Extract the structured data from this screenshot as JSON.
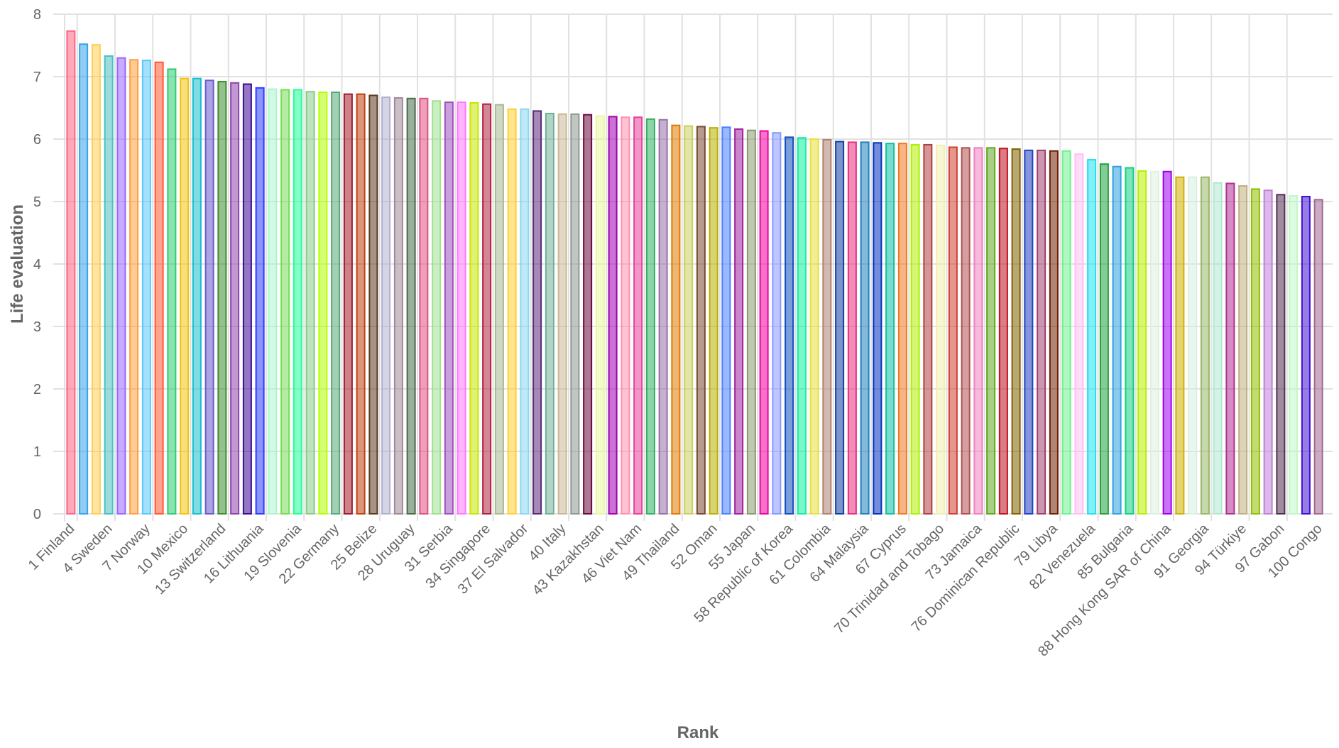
{
  "chart_data": {
    "type": "bar",
    "xlabel": "Rank",
    "ylabel": "Life evaluation",
    "ylim": [
      0,
      8
    ],
    "yticks": [
      "0",
      "1",
      "2",
      "3",
      "4",
      "5",
      "6",
      "7",
      "8"
    ],
    "grid": true,
    "legend": "none",
    "ranks": [
      1,
      2,
      3,
      4,
      5,
      6,
      7,
      8,
      9,
      10,
      11,
      12,
      13,
      14,
      15,
      16,
      17,
      18,
      19,
      20,
      21,
      22,
      23,
      24,
      25,
      26,
      27,
      28,
      29,
      30,
      31,
      32,
      33,
      34,
      35,
      36,
      37,
      38,
      39,
      40,
      41,
      42,
      43,
      44,
      45,
      46,
      47,
      48,
      49,
      50,
      51,
      52,
      53,
      54,
      55,
      56,
      57,
      58,
      59,
      60,
      61,
      62,
      63,
      64,
      65,
      66,
      67,
      68,
      69,
      70,
      71,
      72,
      73,
      74,
      75,
      76,
      77,
      78,
      79,
      80,
      81,
      82,
      83,
      84,
      85,
      86,
      87,
      88,
      89,
      90,
      91,
      92,
      93,
      94,
      95,
      96,
      97,
      98,
      99,
      100
    ],
    "tick_labels": [
      {
        "rank": 1,
        "label": "1 Finland"
      },
      {
        "rank": 4,
        "label": "4 Sweden"
      },
      {
        "rank": 7,
        "label": "7 Norway"
      },
      {
        "rank": 10,
        "label": "10 Mexico"
      },
      {
        "rank": 13,
        "label": "13 Switzerland"
      },
      {
        "rank": 16,
        "label": "16 Lithuania"
      },
      {
        "rank": 19,
        "label": "19 Slovenia"
      },
      {
        "rank": 22,
        "label": "22 Germany"
      },
      {
        "rank": 25,
        "label": "25 Belize"
      },
      {
        "rank": 28,
        "label": "28 Uruguay"
      },
      {
        "rank": 31,
        "label": "31 Serbia"
      },
      {
        "rank": 34,
        "label": "34 Singapore"
      },
      {
        "rank": 37,
        "label": "37 El Salvador"
      },
      {
        "rank": 40,
        "label": "40 Italy"
      },
      {
        "rank": 43,
        "label": "43 Kazakhstan"
      },
      {
        "rank": 46,
        "label": "46 Viet Nam"
      },
      {
        "rank": 49,
        "label": "49 Thailand"
      },
      {
        "rank": 52,
        "label": "52 Oman"
      },
      {
        "rank": 55,
        "label": "55 Japan"
      },
      {
        "rank": 58,
        "label": "58 Republic of Korea"
      },
      {
        "rank": 61,
        "label": "61 Colombia"
      },
      {
        "rank": 64,
        "label": "64 Malaysia"
      },
      {
        "rank": 67,
        "label": "67 Cyprus"
      },
      {
        "rank": 70,
        "label": "70 Trinidad and Tobago"
      },
      {
        "rank": 73,
        "label": "73 Jamaica"
      },
      {
        "rank": 76,
        "label": "76 Dominican Republic"
      },
      {
        "rank": 79,
        "label": "79 Libya"
      },
      {
        "rank": 82,
        "label": "82 Venezuela"
      },
      {
        "rank": 85,
        "label": "85 Bulgaria"
      },
      {
        "rank": 88,
        "label": "88 Hong Kong SAR of China"
      },
      {
        "rank": 91,
        "label": "91 Georgia"
      },
      {
        "rank": 94,
        "label": "94 Türkiye"
      },
      {
        "rank": 97,
        "label": "97 Gabon"
      },
      {
        "rank": 100,
        "label": "100 Congo"
      }
    ],
    "values": [
      7.73,
      7.52,
      7.51,
      7.33,
      7.3,
      7.27,
      7.26,
      7.23,
      7.12,
      6.97,
      6.97,
      6.94,
      6.92,
      6.9,
      6.88,
      6.82,
      6.8,
      6.79,
      6.79,
      6.76,
      6.75,
      6.75,
      6.72,
      6.72,
      6.7,
      6.67,
      6.66,
      6.65,
      6.65,
      6.61,
      6.59,
      6.59,
      6.58,
      6.56,
      6.55,
      6.48,
      6.48,
      6.45,
      6.41,
      6.4,
      6.4,
      6.39,
      6.37,
      6.36,
      6.35,
      6.35,
      6.32,
      6.31,
      6.22,
      6.21,
      6.2,
      6.18,
      6.19,
      6.16,
      6.14,
      6.13,
      6.1,
      6.03,
      6.02,
      6.0,
      5.99,
      5.96,
      5.95,
      5.95,
      5.94,
      5.93,
      5.93,
      5.91,
      5.91,
      5.9,
      5.87,
      5.86,
      5.86,
      5.86,
      5.85,
      5.84,
      5.82,
      5.82,
      5.81,
      5.81,
      5.76,
      5.67,
      5.6,
      5.56,
      5.54,
      5.49,
      5.48,
      5.48,
      5.39,
      5.39,
      5.39,
      5.3,
      5.29,
      5.25,
      5.2,
      5.18,
      5.11,
      5.09,
      5.08,
      5.03
    ],
    "colors": [
      "#ff6384",
      "#36a2eb",
      "#ffce56",
      "#4bc0c0",
      "#9966ff",
      "#ff9f40",
      "#5ac8fa",
      "#ff5733",
      "#2ecc71",
      "#f1c40f",
      "#17becf",
      "#6a5acd",
      "#3e8e2e",
      "#8e44ad",
      "#3d0a91",
      "#2b3cff",
      "#aaf5cc",
      "#77dd55",
      "#22ff99",
      "#88cc88",
      "#b3ff00",
      "#55aa77",
      "#a01c2c",
      "#c04010",
      "#5c3a1e",
      "#b0b0d0",
      "#a08898",
      "#4a6b4a",
      "#e05080",
      "#a0e090",
      "#a050c0",
      "#ff77ff",
      "#c8e600",
      "#b02040",
      "#a8b890",
      "#ffd030",
      "#88d8f0",
      "#5a2a7a",
      "#70b098",
      "#c8b898",
      "#909890",
      "#6a0a3a",
      "#eaf8a0",
      "#a000b0",
      "#ff90b0",
      "#e8409a",
      "#30b060",
      "#9870a8",
      "#e07a00",
      "#c8d060",
      "#7a4a30",
      "#b8b000",
      "#4a80ff",
      "#a020a0",
      "#8a9a70",
      "#f000a0",
      "#8898ff",
      "#1050c0",
      "#10f0a0",
      "#e8e040",
      "#b08070",
      "#1040a0",
      "#e83080",
      "#2080c0",
      "#0030c0",
      "#10c0a0",
      "#f07820",
      "#b0f000",
      "#b04040",
      "#f0f0b0",
      "#d04030",
      "#b05050",
      "#f080c0",
      "#60a820",
      "#c01020",
      "#806000",
      "#2040c0",
      "#a04070",
      "#702000",
      "#70f090",
      "#ffc0f0",
      "#20e0f0",
      "#20a040",
      "#30a0e0",
      "#10d080",
      "#b8f000",
      "#e0f0e0",
      "#a000f0",
      "#d0b000",
      "#d8f0e0",
      "#98b868",
      "#b0e8d0",
      "#b03090",
      "#c0b080",
      "#90c000",
      "#c080d8",
      "#503050",
      "#c0f8c8",
      "#4010d0",
      "#a06890"
    ]
  }
}
